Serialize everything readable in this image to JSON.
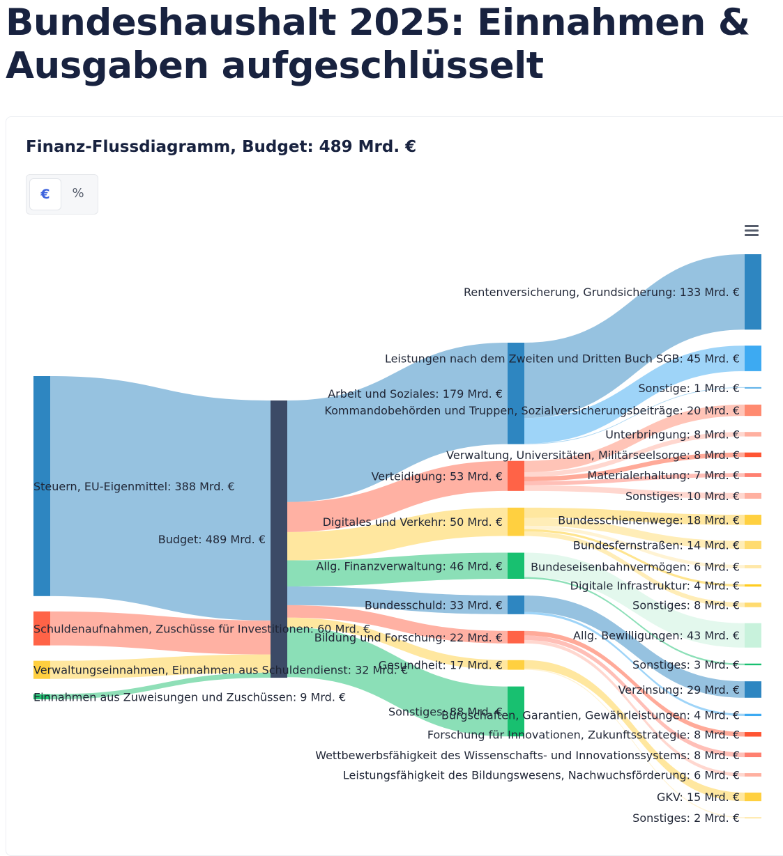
{
  "page": {
    "title": "Bundeshaushalt 2025: Einnahmen & Ausgaben aufgeschlüsselt",
    "chart_title": "Finanz-Flussdiagramm, Budget: 489 Mrd. €"
  },
  "toggle": {
    "euro_label": "€",
    "percent_label": "%",
    "active": "€"
  },
  "menu": {
    "icon": "hamburger-menu-icon"
  },
  "colors": {
    "budget": "#3c4a66",
    "steuern": "#2e86c1",
    "schulden": "#ff6347",
    "verwaltung": "#ffcf40",
    "zuweisungen": "#20c070",
    "arbeit": "#2e86c1",
    "verteidigung": "#ff6347",
    "digitales": "#ffd040",
    "finanz": "#18c070",
    "bundesschuld": "#2e86c1",
    "bildung": "#ff6347",
    "gesundheit": "#ffd040",
    "sonstiges": "#18c070"
  },
  "chart_data": {
    "type": "sankey",
    "unit": "Mrd. €",
    "title": "Finanz-Flussdiagramm, Budget: 489 Mrd. €",
    "nodes": [
      {
        "id": "steuern",
        "label": "Steuern, EU-Eigenmittel: 388 Mrd. €",
        "value": 388,
        "column": 0,
        "color": "#2e86c1"
      },
      {
        "id": "schulden",
        "label": "Schuldenaufnahmen, Zuschüsse für Investitionen: 60 Mrd. €",
        "value": 60,
        "column": 0,
        "color": "#ff6347"
      },
      {
        "id": "verwein",
        "label": "Verwaltungseinnahmen, Einnahmen aus Schuldendienst: 32 Mrd. €",
        "value": 32,
        "column": 0,
        "color": "#ffcf40"
      },
      {
        "id": "zuweis",
        "label": "Einnahmen aus Zuweisungen und Zuschüssen: 9 Mrd. €",
        "value": 9,
        "column": 0,
        "color": "#20c070"
      },
      {
        "id": "budget",
        "label": "Budget: 489 Mrd. €",
        "value": 489,
        "column": 1,
        "color": "#3c4a66"
      },
      {
        "id": "arbeit",
        "label": "Arbeit und Soziales: 179 Mrd. €",
        "value": 179,
        "column": 2,
        "color": "#2e86c1"
      },
      {
        "id": "verteid",
        "label": "Verteidigung: 53 Mrd. €",
        "value": 53,
        "column": 2,
        "color": "#ff6347"
      },
      {
        "id": "digital",
        "label": "Digitales und Verkehr: 50 Mrd. €",
        "value": 50,
        "column": 2,
        "color": "#ffd040"
      },
      {
        "id": "finanz",
        "label": "Allg. Finanzverwaltung: 46 Mrd. €",
        "value": 46,
        "column": 2,
        "color": "#18c070"
      },
      {
        "id": "bschuld",
        "label": "Bundesschuld: 33 Mrd. €",
        "value": 33,
        "column": 2,
        "color": "#2e86c1"
      },
      {
        "id": "bildung",
        "label": "Bildung und Forschung: 22 Mrd. €",
        "value": 22,
        "column": 2,
        "color": "#ff6347"
      },
      {
        "id": "gesund",
        "label": "Gesundheit: 17 Mrd. €",
        "value": 17,
        "column": 2,
        "color": "#ffd040"
      },
      {
        "id": "sonst",
        "label": "Sonstiges: 88 Mrd. €",
        "value": 88,
        "column": 2,
        "color": "#18c070"
      },
      {
        "id": "a_rente",
        "label": "Rentenversicherung, Grundsicherung: 133 Mrd. €",
        "value": 133,
        "column": 3,
        "color": "#2e86c1"
      },
      {
        "id": "a_sgb",
        "label": "Leistungen nach dem Zweiten und Dritten Buch SGB: 45 Mrd. €",
        "value": 45,
        "column": 3,
        "color": "#3daaf2"
      },
      {
        "id": "a_sonst",
        "label": "Sonstige: 1 Mrd. €",
        "value": 1,
        "column": 3,
        "color": "#5ab0e8"
      },
      {
        "id": "v_kommando",
        "label": "Kommandobehörden und Truppen, Sozialversicherungsbeiträge: 20 Mrd. €",
        "value": 20,
        "column": 3,
        "color": "#ff8a70"
      },
      {
        "id": "v_unterbr",
        "label": "Unterbringung: 8 Mrd. €",
        "value": 8,
        "column": 3,
        "color": "#ffb0a0"
      },
      {
        "id": "v_verw",
        "label": "Verwaltung, Universitäten, Militärseelsorge: 8 Mrd. €",
        "value": 8,
        "column": 3,
        "color": "#ff5533"
      },
      {
        "id": "v_mat",
        "label": "Materialerhaltung: 7 Mrd. €",
        "value": 7,
        "column": 3,
        "color": "#ff8070"
      },
      {
        "id": "v_sonst",
        "label": "Sonstiges: 10 Mrd. €",
        "value": 10,
        "column": 3,
        "color": "#ffb0a0"
      },
      {
        "id": "d_schiene",
        "label": "Bundesschienenwege: 18 Mrd. €",
        "value": 18,
        "column": 3,
        "color": "#ffd040"
      },
      {
        "id": "d_strasse",
        "label": "Bundesfernstraßen: 14 Mrd. €",
        "value": 14,
        "column": 3,
        "color": "#ffdb70"
      },
      {
        "id": "d_eisen",
        "label": "Bundeseisenbahnvermögen: 6 Mrd. €",
        "value": 6,
        "column": 3,
        "color": "#ffe8a8"
      },
      {
        "id": "d_infra",
        "label": "Digitale Infrastruktur: 4 Mrd. €",
        "value": 4,
        "column": 3,
        "color": "#ffcc20"
      },
      {
        "id": "d_sonst",
        "label": "Sonstiges: 8 Mrd. €",
        "value": 8,
        "column": 3,
        "color": "#ffdb70"
      },
      {
        "id": "f_bewill",
        "label": "Allg. Bewilligungen: 43 Mrd. €",
        "value": 43,
        "column": 3,
        "color": "#c8f2dc"
      },
      {
        "id": "f_sonst",
        "label": "Sonstiges: 3 Mrd. €",
        "value": 3,
        "column": 3,
        "color": "#18c070"
      },
      {
        "id": "b_zins",
        "label": "Verzinsung: 29 Mrd. €",
        "value": 29,
        "column": 3,
        "color": "#2e86c1"
      },
      {
        "id": "b_buerg",
        "label": "Bürgschaften, Garantien, Gewährleistungen: 4 Mrd. €",
        "value": 4,
        "column": 3,
        "color": "#3daaf2"
      },
      {
        "id": "bf_forsch",
        "label": "Forschung für Innovationen, Zukunftsstrategie: 8 Mrd. €",
        "value": 8,
        "column": 3,
        "color": "#ff5533"
      },
      {
        "id": "bf_wettb",
        "label": "Wettbewerbsfähigkeit des Wissenschafts- und Innovationssystems: 8 Mrd. €",
        "value": 8,
        "column": 3,
        "color": "#ff8070"
      },
      {
        "id": "bf_leist",
        "label": "Leistungsfähigkeit des Bildungswesens, Nachwuchsförderung: 6 Mrd. €",
        "value": 6,
        "column": 3,
        "color": "#ffb0a0"
      },
      {
        "id": "g_gkv",
        "label": "GKV: 15 Mrd. €",
        "value": 15,
        "column": 3,
        "color": "#ffd040"
      },
      {
        "id": "g_sonst",
        "label": "Sonstiges: 2 Mrd. €",
        "value": 2,
        "column": 3,
        "color": "#ffe8a8"
      }
    ],
    "links": [
      {
        "source": "steuern",
        "target": "budget",
        "value": 388
      },
      {
        "source": "schulden",
        "target": "budget",
        "value": 60
      },
      {
        "source": "verwein",
        "target": "budget",
        "value": 32
      },
      {
        "source": "zuweis",
        "target": "budget",
        "value": 9
      },
      {
        "source": "budget",
        "target": "arbeit",
        "value": 179
      },
      {
        "source": "budget",
        "target": "verteid",
        "value": 53
      },
      {
        "source": "budget",
        "target": "digital",
        "value": 50
      },
      {
        "source": "budget",
        "target": "finanz",
        "value": 46
      },
      {
        "source": "budget",
        "target": "bschuld",
        "value": 33
      },
      {
        "source": "budget",
        "target": "bildung",
        "value": 22
      },
      {
        "source": "budget",
        "target": "gesund",
        "value": 17
      },
      {
        "source": "budget",
        "target": "sonst",
        "value": 88
      },
      {
        "source": "arbeit",
        "target": "a_rente",
        "value": 133
      },
      {
        "source": "arbeit",
        "target": "a_sgb",
        "value": 45
      },
      {
        "source": "arbeit",
        "target": "a_sonst",
        "value": 1
      },
      {
        "source": "verteid",
        "target": "v_kommando",
        "value": 20
      },
      {
        "source": "verteid",
        "target": "v_unterbr",
        "value": 8
      },
      {
        "source": "verteid",
        "target": "v_verw",
        "value": 8
      },
      {
        "source": "verteid",
        "target": "v_mat",
        "value": 7
      },
      {
        "source": "verteid",
        "target": "v_sonst",
        "value": 10
      },
      {
        "source": "digital",
        "target": "d_schiene",
        "value": 18
      },
      {
        "source": "digital",
        "target": "d_strasse",
        "value": 14
      },
      {
        "source": "digital",
        "target": "d_eisen",
        "value": 6
      },
      {
        "source": "digital",
        "target": "d_infra",
        "value": 4
      },
      {
        "source": "digital",
        "target": "d_sonst",
        "value": 8
      },
      {
        "source": "finanz",
        "target": "f_bewill",
        "value": 43
      },
      {
        "source": "finanz",
        "target": "f_sonst",
        "value": 3
      },
      {
        "source": "bschuld",
        "target": "b_zins",
        "value": 29
      },
      {
        "source": "bschuld",
        "target": "b_buerg",
        "value": 4
      },
      {
        "source": "bildung",
        "target": "bf_forsch",
        "value": 8
      },
      {
        "source": "bildung",
        "target": "bf_wettb",
        "value": 8
      },
      {
        "source": "bildung",
        "target": "bf_leist",
        "value": 6
      },
      {
        "source": "gesund",
        "target": "g_gkv",
        "value": 15
      },
      {
        "source": "gesund",
        "target": "g_sonst",
        "value": 2
      }
    ]
  }
}
